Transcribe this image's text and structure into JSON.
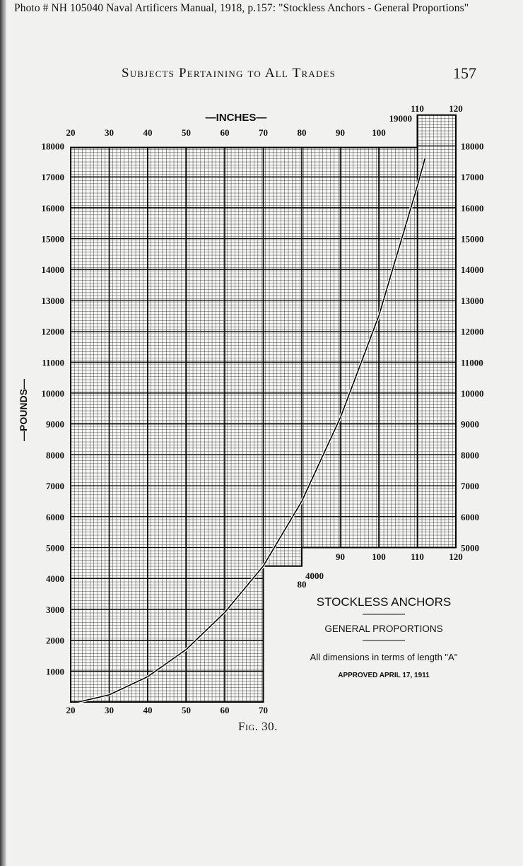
{
  "header": {
    "photo_caption": "Photo # NH 105040 Naval Artificers Manual, 1918, p.157: \"Stockless Anchors - General Proportions\"",
    "running_head": "Subjects Pertaining to All Trades",
    "page_number": "157"
  },
  "figure_label": "Fig. 30.",
  "chart_data": {
    "type": "line",
    "title": "STOCKLESS ANCHORS",
    "subtitle": "GENERAL PROPORTIONS",
    "note": "All dimensions in terms of length \"A\"",
    "approval": "APPROVED APRIL 17, 1911",
    "xlabel": "—INCHES—",
    "ylabel": "—POUNDS—",
    "xlim": [
      20,
      120
    ],
    "ylim": [
      0,
      19000
    ],
    "x_ticks_top": [
      "20",
      "30",
      "40",
      "50",
      "60",
      "70",
      "80",
      "90",
      "100"
    ],
    "x_ticks_topright": [
      "110",
      "120"
    ],
    "x_ticks_bottom": [
      "20",
      "30",
      "40",
      "50",
      "60",
      "70"
    ],
    "x_ticks_mid1": [
      "80"
    ],
    "x_ticks_mid2": [
      "90",
      "100",
      "110",
      "120"
    ],
    "y_ticks_left": [
      "18000",
      "17000",
      "16000",
      "15000",
      "14000",
      "13000",
      "12000",
      "11000",
      "10000",
      "9000",
      "8000",
      "7000",
      "6000",
      "5000",
      "4000",
      "3000",
      "2000",
      "1000"
    ],
    "y_ticks_right": [
      "18000",
      "17000",
      "16000",
      "15000",
      "14000",
      "13000",
      "12000",
      "11000",
      "10000",
      "9000",
      "8000",
      "7000",
      "6000",
      "5000"
    ],
    "y_tick_4000_step": "4000",
    "y_tick_19000": "19000",
    "grid": true,
    "series": [
      {
        "x": [
          22,
          30,
          40,
          50,
          60,
          70,
          80,
          90,
          100,
          110,
          112
        ],
        "y": [
          0,
          230,
          820,
          1700,
          2900,
          4400,
          6500,
          9200,
          12500,
          16700,
          17600
        ]
      }
    ]
  }
}
